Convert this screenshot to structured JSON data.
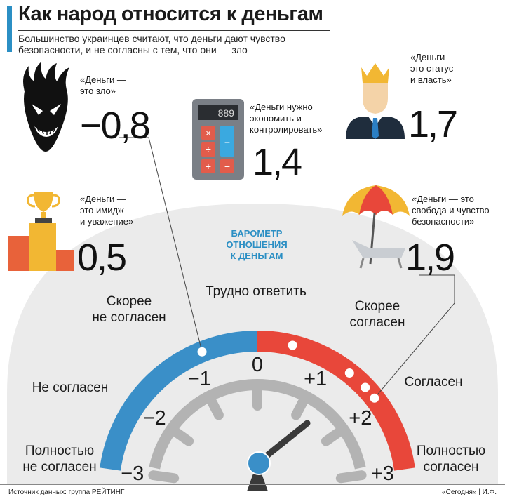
{
  "title": "Как народ относится к деньгам",
  "subtitle": "Большинство украинцев считают, что деньги дают чувство безопасности, и не согласны с тем, что они — зло",
  "barometer_title": [
    "БАРОМЕТР",
    "ОТНОШЕНИЯ",
    "К ДЕНЬГАМ"
  ],
  "source": "Источник данных: группа РЕЙТИНГ",
  "credit": "«Сегодня» | И.Ф.",
  "colors": {
    "accent": "#2b8fc4",
    "agree": "#e8473a",
    "disagree": "#3a8fc8",
    "gauge_gray": "#b3b3b3",
    "halo": "#ebebeb"
  },
  "chart_data": {
    "type": "gauge",
    "scale": {
      "min": -3,
      "max": 3,
      "ticks": [
        "−3",
        "−2",
        "−1",
        "0",
        "+1",
        "+2",
        "+3"
      ]
    },
    "zones": [
      {
        "label_lines": [
          "Полностью",
          "не согласен"
        ]
      },
      {
        "label_lines": [
          "Не согласен"
        ]
      },
      {
        "label_lines": [
          "Скорее",
          "не согласен"
        ]
      },
      {
        "label_lines": [
          "Трудно ответить"
        ]
      },
      {
        "label_lines": [
          "Скорее",
          "согласен"
        ]
      },
      {
        "label_lines": [
          "Согласен"
        ]
      },
      {
        "label_lines": [
          "Полностью",
          "согласен"
        ]
      }
    ],
    "statements": [
      {
        "key": "evil",
        "quote_lines": [
          "«Деньги —",
          "это зло»"
        ],
        "value": -0.8,
        "value_text": "−0,8",
        "icon": "demon-icon"
      },
      {
        "key": "image",
        "quote_lines": [
          "«Деньги —",
          "это имидж",
          "и уважение»"
        ],
        "value": 0.5,
        "value_text": "0,5",
        "icon": "trophy-podium-icon"
      },
      {
        "key": "save",
        "quote_lines": [
          "«Деньги нужно",
          "экономить и",
          "контролировать»"
        ],
        "value": 1.4,
        "value_text": "1,4",
        "icon": "calculator-icon",
        "display": "889"
      },
      {
        "key": "status",
        "quote_lines": [
          "«Деньги —",
          "это статус",
          "и власть»"
        ],
        "value": 1.7,
        "value_text": "1,7",
        "icon": "crowned-man-icon"
      },
      {
        "key": "freedom",
        "quote_lines": [
          "«Деньги — это",
          "свобода и чувство",
          "безопасности»"
        ],
        "value": 1.9,
        "value_text": "1,9",
        "icon": "beach-umbrella-icon"
      }
    ]
  }
}
